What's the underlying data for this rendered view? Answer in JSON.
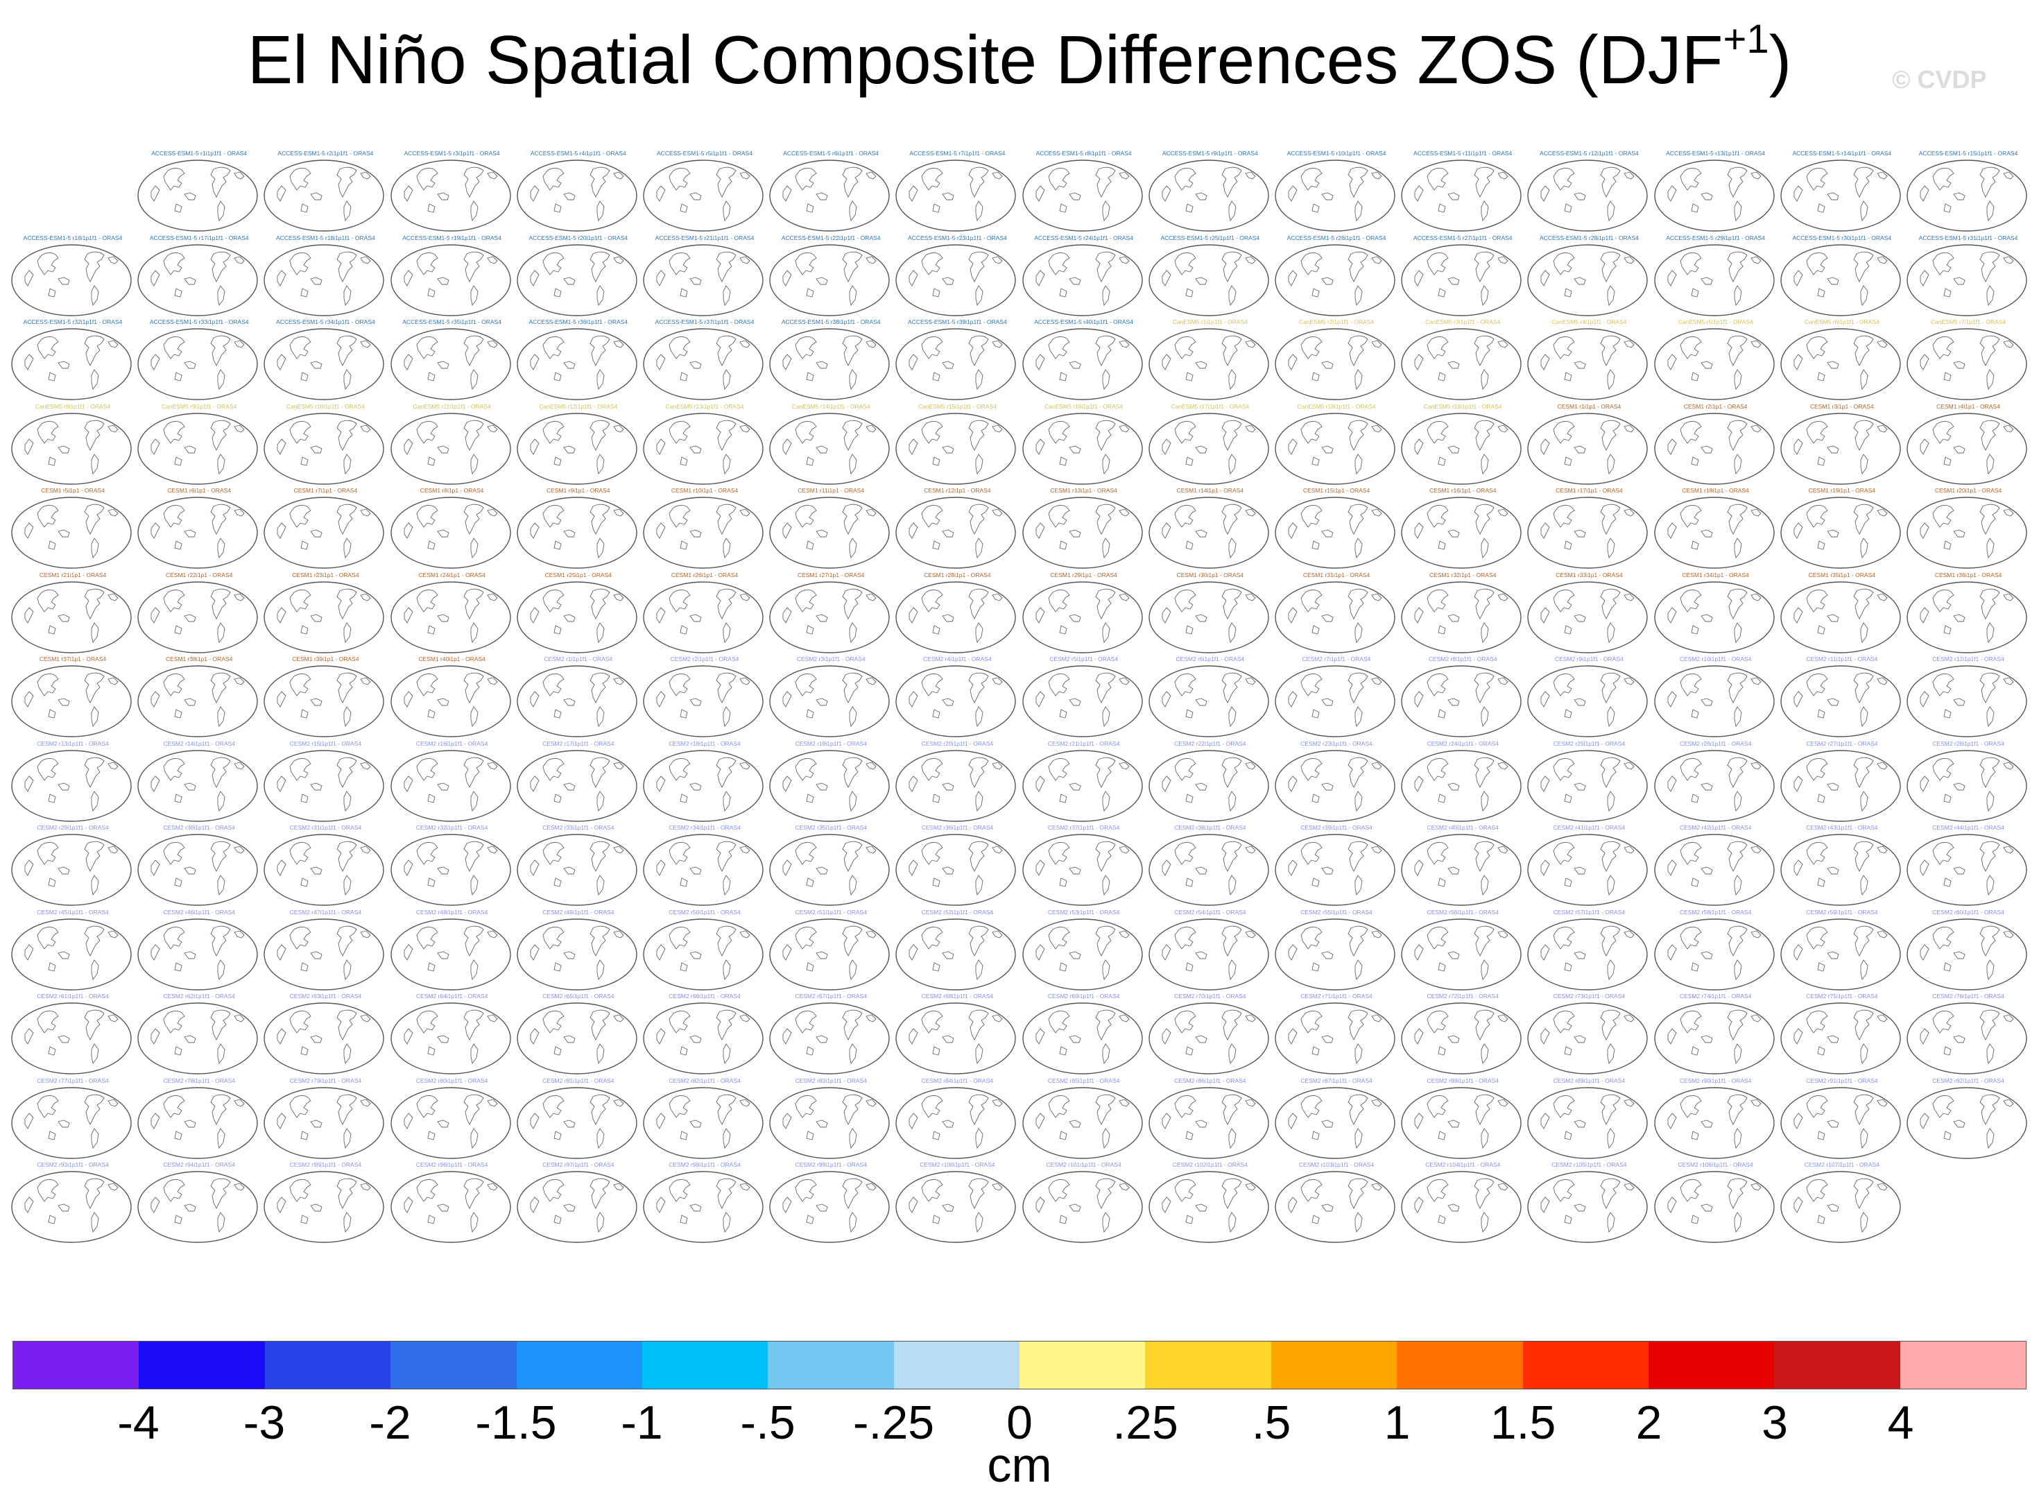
{
  "title": {
    "main": "El Niño Spatial Composite Differences ZOS (DJF",
    "sup": "+1",
    "close": ")"
  },
  "watermark": "© CVDP",
  "chart_data": {
    "type": "heatmap",
    "title": "El Niño Spatial Composite Differences ZOS (DJF+1)",
    "units": "cm",
    "colorbar": {
      "labels": [
        "-4",
        "-3",
        "-2",
        "-1.5",
        "-1",
        "-.5",
        "-.25",
        "0",
        ".25",
        ".5",
        "1",
        "1.5",
        "2",
        "3",
        "4"
      ],
      "colors": [
        "#7a1ff0",
        "#1a0af5",
        "#2a43e8",
        "#2f6ee8",
        "#1d93fb",
        "#00bff9",
        "#73c7f0",
        "#b6ddf1",
        "#fff78a",
        "#ffd42d",
        "#ffa500",
        "#ff7200",
        "#ff2d00",
        "#e60000",
        "#cc1818",
        "#ffabab"
      ]
    },
    "panel_layout": {
      "columns": 16,
      "rows": [
        15,
        16,
        16,
        16,
        16,
        16,
        16,
        16,
        16,
        16,
        16,
        16,
        15
      ],
      "first_row_start_column": 1
    },
    "panels": [
      {
        "count": 40,
        "label_prefix": "ACCESS-ESM1-5",
        "suffix": "i1p1f1 - ORAS4",
        "color": "#2e75b6",
        "start": 1
      },
      {
        "count": 19,
        "label_prefix": "CanESM5",
        "suffix": "i1p1f1 - ORAS4",
        "color": "#d2c25a",
        "start": 1
      },
      {
        "count": 40,
        "label_prefix": "CESM1",
        "suffix": "i1p1 - ORAS4",
        "color": "#b5652a",
        "start": 1
      },
      {
        "count": 107,
        "label_prefix": "CESM2",
        "suffix": "i1p1f1 - ORAS4",
        "color": "#8a8ff0",
        "start": 1
      }
    ]
  }
}
